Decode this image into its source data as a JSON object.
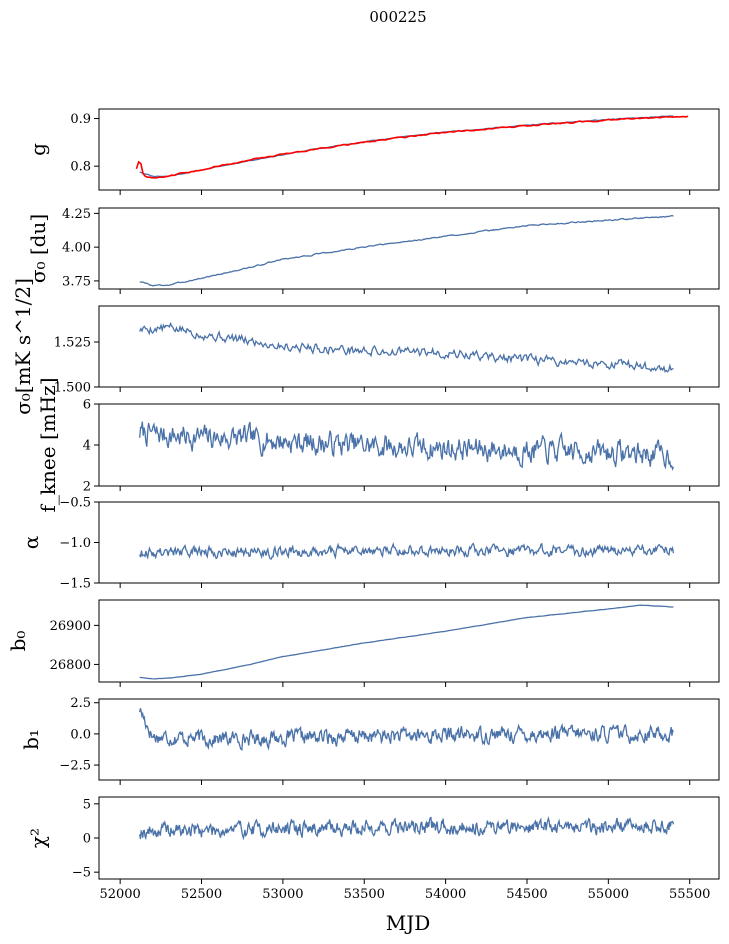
{
  "figure": {
    "title": "000225"
  },
  "chart_data": [
    {
      "type": "line",
      "name": "g",
      "ylabel": "g",
      "ylim": [
        0.75,
        0.92
      ],
      "yticks": [
        0.8,
        0.9
      ],
      "ytick_labels": [
        "0.8",
        "0.9"
      ],
      "series": [
        {
          "name": "model",
          "color": "#4a72a8",
          "x": [
            52120,
            52200,
            52300,
            52500,
            52800,
            53200,
            53600,
            54000,
            54500,
            55000,
            55400
          ],
          "y": [
            0.788,
            0.779,
            0.779,
            0.792,
            0.812,
            0.836,
            0.856,
            0.872,
            0.886,
            0.898,
            0.905
          ]
        },
        {
          "name": "data",
          "color": "#ff0000",
          "x": [
            52100,
            52110,
            52120,
            52130,
            52140,
            52160,
            52200,
            52300,
            52500,
            52800,
            53200,
            53600,
            54000,
            54500,
            55000,
            55490
          ],
          "y": [
            0.795,
            0.82,
            0.79,
            0.812,
            0.784,
            0.778,
            0.776,
            0.779,
            0.793,
            0.813,
            0.836,
            0.855,
            0.871,
            0.885,
            0.897,
            0.905
          ]
        }
      ]
    },
    {
      "type": "line",
      "name": "sigma0-du",
      "ylabel": "σ₀ [du]",
      "ylim": [
        3.69,
        4.29
      ],
      "yticks": [
        3.75,
        4.0,
        4.25
      ],
      "ytick_labels": [
        "3.75",
        "4.00",
        "4.25"
      ],
      "series": [
        {
          "name": "sigma0",
          "color": "#4a72a8",
          "x": [
            52120,
            52200,
            52300,
            52500,
            52800,
            53000,
            53500,
            54000,
            54500,
            55000,
            55400
          ],
          "y": [
            3.745,
            3.715,
            3.72,
            3.77,
            3.85,
            3.91,
            4.0,
            4.08,
            4.16,
            4.2,
            4.23
          ]
        }
      ]
    },
    {
      "type": "line",
      "name": "sigma0-mk",
      "ylabel": "σ₀[mK s^1/2]",
      "ylim": [
        1.5,
        1.545
      ],
      "yticks": [
        1.5,
        1.525
      ],
      "ytick_labels": [
        "1.500",
        "1.525"
      ],
      "series": [
        {
          "name": "sigma0",
          "color": "#4a72a8",
          "x": [
            52120,
            52300,
            52600,
            53000,
            53500,
            54000,
            54500,
            55000,
            55400
          ],
          "y": [
            1.532,
            1.533,
            1.528,
            1.523,
            1.52,
            1.519,
            1.515,
            1.513,
            1.51
          ]
        }
      ]
    },
    {
      "type": "line",
      "name": "fknee",
      "ylabel": "f_knee [mHz]",
      "ylim": [
        2,
        6
      ],
      "yticks": [
        2,
        4,
        6
      ],
      "ytick_labels": [
        "2",
        "4",
        "6"
      ],
      "series": [
        {
          "name": "fknee",
          "color": "#4a72a8",
          "x": [
            52120,
            52400,
            52800,
            53200,
            53700,
            54200,
            54700,
            55200,
            55400
          ],
          "y": [
            4.6,
            4.4,
            4.3,
            4.1,
            3.9,
            3.8,
            3.7,
            3.6,
            3.5
          ]
        }
      ]
    },
    {
      "type": "line",
      "name": "alpha",
      "ylabel": "α",
      "ylim": [
        -1.5,
        -0.5
      ],
      "yticks": [
        -1.5,
        -1.0,
        -0.5
      ],
      "ytick_labels": [
        "−1.5",
        "−1.0",
        "−0.5"
      ],
      "series": [
        {
          "name": "alpha",
          "color": "#4a72a8",
          "x": [
            52120,
            52800,
            53600,
            54400,
            55400
          ],
          "y": [
            -1.12,
            -1.11,
            -1.1,
            -1.1,
            -1.1
          ]
        }
      ]
    },
    {
      "type": "line",
      "name": "b0",
      "ylabel": "b₀",
      "ylim": [
        26755,
        26965
      ],
      "yticks": [
        26800,
        26900
      ],
      "ytick_labels": [
        "26800",
        "26900"
      ],
      "series": [
        {
          "name": "b0",
          "color": "#4a72a8",
          "x": [
            52120,
            52200,
            52300,
            52500,
            52800,
            53000,
            53500,
            54000,
            54500,
            55000,
            55200,
            55400
          ],
          "y": [
            26767,
            26763,
            26765,
            26775,
            26800,
            26820,
            26855,
            26885,
            26920,
            26942,
            26952,
            26947
          ]
        }
      ]
    },
    {
      "type": "line",
      "name": "b1",
      "ylabel": "b₁",
      "ylim": [
        -3.7,
        2.8
      ],
      "yticks": [
        -2.5,
        0.0,
        2.5
      ],
      "ytick_labels": [
        "−2.5",
        "0.0",
        "2.5"
      ],
      "series": [
        {
          "name": "b1",
          "color": "#4a72a8",
          "x": [
            52120,
            52200,
            52600,
            53500,
            54500,
            55400
          ],
          "y": [
            2.0,
            -0.2,
            -0.4,
            -0.2,
            0.0,
            0.0
          ]
        }
      ]
    },
    {
      "type": "line",
      "name": "chi2",
      "ylabel": "χ²",
      "ylim": [
        -6,
        6
      ],
      "yticks": [
        -5,
        0,
        5
      ],
      "ytick_labels": [
        "−5",
        "0",
        "5"
      ],
      "xlabel": "MJD",
      "series": [
        {
          "name": "chi2",
          "color": "#4a72a8",
          "x": [
            52120,
            52800,
            53600,
            54400,
            55400
          ],
          "y": [
            1.0,
            1.3,
            1.6,
            1.7,
            1.8
          ]
        }
      ]
    }
  ],
  "xaxis": {
    "label": "MJD",
    "xlim": [
      51870,
      55680
    ],
    "ticks": [
      52000,
      52500,
      53000,
      53500,
      54000,
      54500,
      55000,
      55500
    ],
    "tick_labels": [
      "52000",
      "52500",
      "53000",
      "53500",
      "54000",
      "54500",
      "55000",
      "55500"
    ]
  },
  "noise": [
    {
      "amp": 0.0012,
      "n": 250,
      "seed": 11,
      "series": 1
    },
    {
      "amp": 0.004,
      "n": 400,
      "seed": 3
    },
    {
      "amp": 0.0022,
      "n": 450,
      "seed": 5
    },
    {
      "amp": 0.48,
      "n": 600,
      "seed": 7
    },
    {
      "amp": 0.055,
      "n": 600,
      "seed": 9
    },
    {
      "amp": 0.3,
      "n": 300,
      "seed": 13
    },
    {
      "amp": 0.5,
      "n": 700,
      "seed": 17
    },
    {
      "amp": 0.9,
      "n": 700,
      "seed": 19
    }
  ]
}
